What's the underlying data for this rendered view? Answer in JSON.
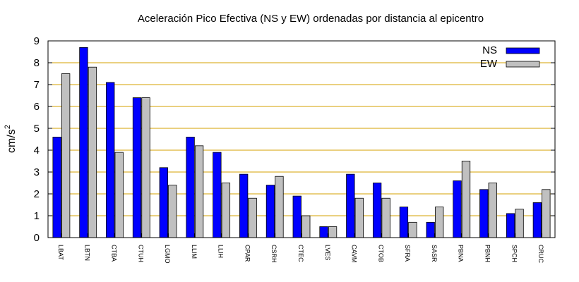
{
  "chart_data": {
    "type": "bar",
    "title": "Aceleración Pico Efectiva (NS y EW) ordenadas por distancia al epicentro",
    "ylabel": "cm/s",
    "ylabel_superscript": "2",
    "xlabel": "",
    "ylim": [
      0,
      9
    ],
    "yticks": [
      "0",
      "1",
      "2",
      "3",
      "4",
      "5",
      "6",
      "7",
      "8",
      "9"
    ],
    "grid": "horizontal",
    "legend_position": "top-right",
    "categories": [
      "LBAT",
      "LBTN",
      "CTBA",
      "CTUH",
      "LGMO",
      "LLIM",
      "LLIH",
      "CPAR",
      "CSRH",
      "CTEC",
      "LVES",
      "CAVM",
      "CTOB",
      "SFRA",
      "SASR",
      "PBNA",
      "PBNH",
      "SPCH",
      "CRUC"
    ],
    "series": [
      {
        "name": "NS",
        "color": "#0000ff",
        "values": [
          4.6,
          8.7,
          7.1,
          6.4,
          3.2,
          4.6,
          3.9,
          2.9,
          2.4,
          1.9,
          0.5,
          2.9,
          2.5,
          1.4,
          0.7,
          2.6,
          2.2,
          1.1,
          1.6
        ]
      },
      {
        "name": "EW",
        "color": "#c0c0c0",
        "values": [
          7.5,
          7.8,
          3.9,
          6.4,
          2.4,
          4.2,
          2.5,
          1.8,
          2.8,
          1.0,
          0.5,
          1.8,
          1.8,
          0.7,
          1.4,
          3.5,
          2.5,
          1.3,
          2.2
        ]
      }
    ],
    "colors": {
      "grid": "#d4a000",
      "axis": "#000000"
    }
  }
}
